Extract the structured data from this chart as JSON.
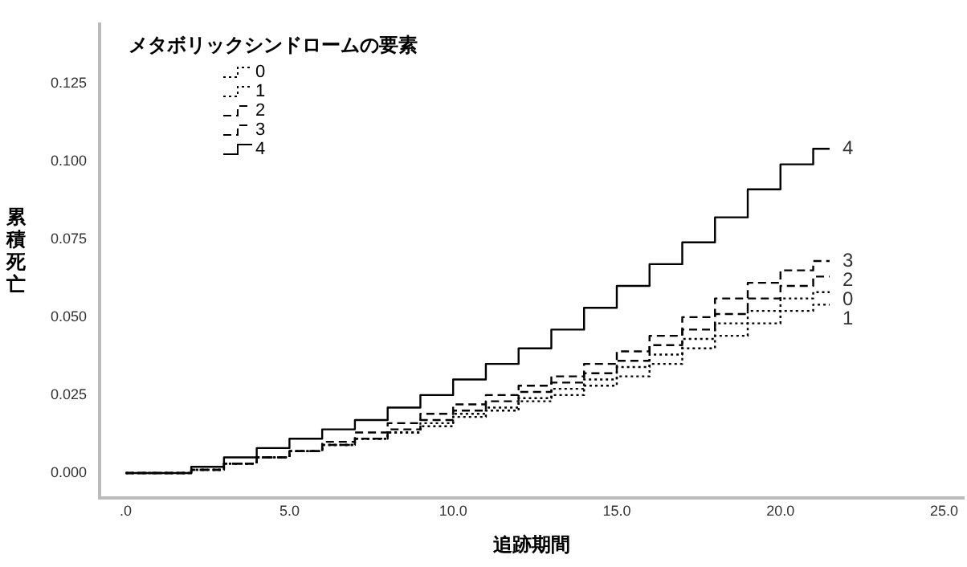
{
  "chart_data": {
    "type": "step",
    "xlabel": "追跡期間",
    "ylabel": "累積死亡",
    "legend_title": "メタボリックシンドロームの要素",
    "legend": "top left",
    "xlim": [
      -0.8,
      25.6
    ],
    "ylim": [
      -0.008,
      0.144
    ],
    "xticks": [
      {
        "value": 0,
        "label": ".0"
      },
      {
        "value": 5,
        "label": "5.0"
      },
      {
        "value": 10,
        "label": "10.0"
      },
      {
        "value": 15,
        "label": "15.0"
      },
      {
        "value": 20,
        "label": "20.0"
      },
      {
        "value": 25,
        "label": "25.0"
      }
    ],
    "yticks": [
      {
        "value": 0,
        "label": "0.000"
      },
      {
        "value": 0.025,
        "label": "0.025"
      },
      {
        "value": 0.05,
        "label": "0.050"
      },
      {
        "value": 0.075,
        "label": "0.075"
      },
      {
        "value": 0.1,
        "label": "0.100"
      },
      {
        "value": 0.125,
        "label": "0.125"
      }
    ],
    "grid": false,
    "x": [
      0,
      2,
      3,
      4,
      5,
      6,
      7,
      8,
      9,
      10,
      11,
      12,
      13,
      14,
      15,
      16,
      17,
      18,
      19,
      20,
      21,
      21.5
    ],
    "series": [
      {
        "name": "0",
        "color": "#000000",
        "line_style": "dotted",
        "values": [
          0,
          0,
          0.001,
          0.003,
          0.005,
          0.007,
          0.009,
          0.011,
          0.013,
          0.016,
          0.019,
          0.021,
          0.024,
          0.027,
          0.03,
          0.034,
          0.038,
          0.043,
          0.048,
          0.052,
          0.056,
          0.058
        ]
      },
      {
        "name": "1",
        "color": "#000000",
        "line_style": "dotted",
        "values": [
          0,
          0,
          0.001,
          0.003,
          0.005,
          0.007,
          0.009,
          0.011,
          0.013,
          0.015,
          0.018,
          0.02,
          0.023,
          0.025,
          0.028,
          0.031,
          0.035,
          0.04,
          0.044,
          0.048,
          0.052,
          0.054
        ]
      },
      {
        "name": "2",
        "color": "#000000",
        "line_style": "dashed",
        "values": [
          0,
          0,
          0.001,
          0.003,
          0.005,
          0.007,
          0.009,
          0.011,
          0.014,
          0.017,
          0.02,
          0.023,
          0.026,
          0.029,
          0.032,
          0.036,
          0.041,
          0.046,
          0.051,
          0.056,
          0.06,
          0.063
        ]
      },
      {
        "name": "3",
        "color": "#000000",
        "line_style": "dashed",
        "values": [
          0,
          0,
          0.001,
          0.003,
          0.005,
          0.007,
          0.01,
          0.013,
          0.016,
          0.019,
          0.022,
          0.025,
          0.028,
          0.031,
          0.035,
          0.039,
          0.044,
          0.05,
          0.056,
          0.061,
          0.065,
          0.068
        ]
      },
      {
        "name": "4",
        "color": "#000000",
        "line_style": "solid",
        "values": [
          0,
          0,
          0.002,
          0.005,
          0.008,
          0.011,
          0.014,
          0.017,
          0.021,
          0.025,
          0.03,
          0.035,
          0.04,
          0.046,
          0.053,
          0.06,
          0.067,
          0.074,
          0.082,
          0.091,
          0.099,
          0.104
        ]
      }
    ]
  }
}
